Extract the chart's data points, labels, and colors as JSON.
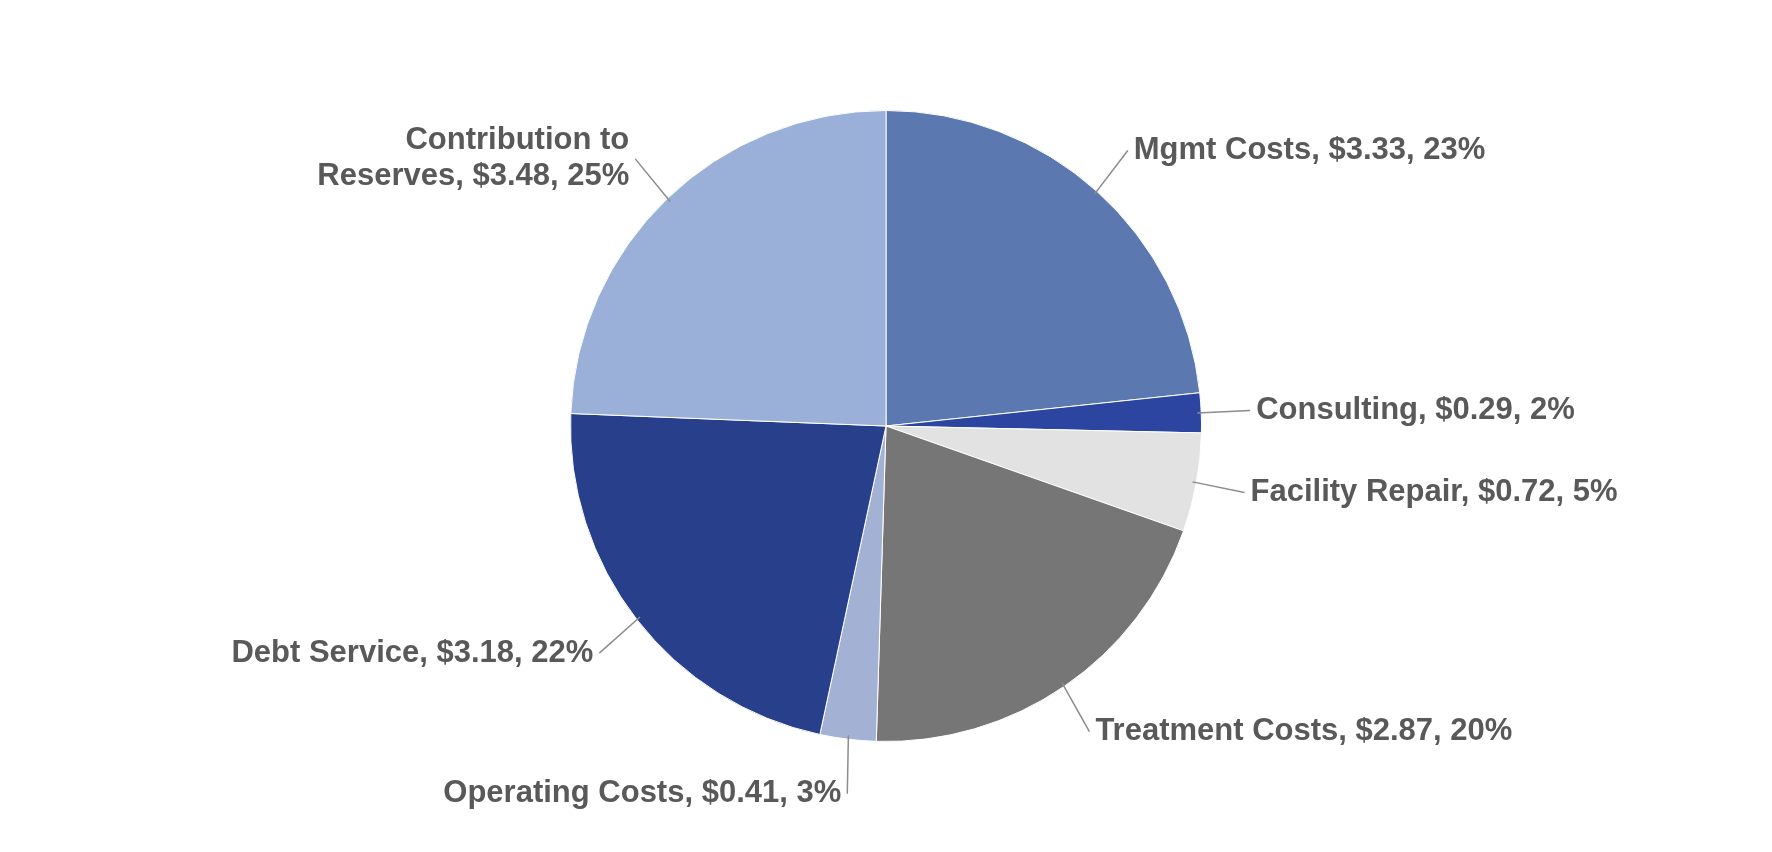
{
  "chart_data": {
    "type": "pie",
    "categories": [
      "Mgmt Costs",
      "Consulting",
      "Facility Repair",
      "Treatment Costs",
      "Operating Costs",
      "Debt Service",
      "Contribution to Reserves"
    ],
    "values": [
      3.33,
      0.29,
      0.72,
      2.87,
      0.41,
      3.18,
      3.48
    ],
    "value_labels": [
      "$3.33, 23%",
      "$0.29, 2%",
      "$0.72, 5%",
      "$2.87, 20%",
      "$0.41, 3%",
      "$3.18, 22%",
      "$3.48, 25%"
    ],
    "colors": [
      "#5b79b0",
      "#2b45a0",
      "#e2e2e2",
      "#767676",
      "#a3b2d4",
      "#283f8c",
      "#9bb0d8"
    ],
    "legend": false
  }
}
